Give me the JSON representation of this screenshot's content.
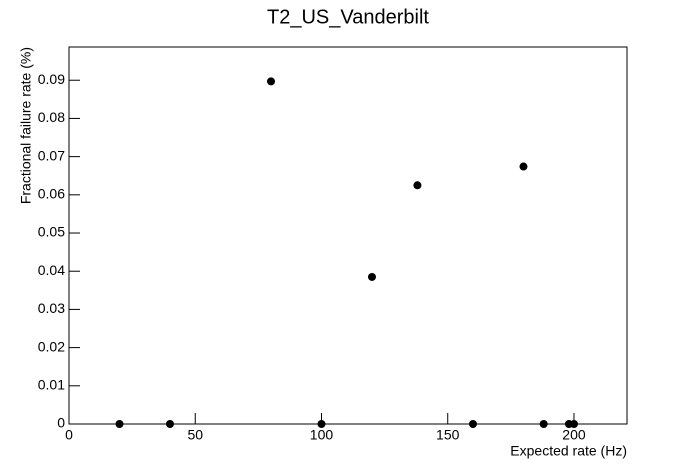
{
  "chart_data": {
    "type": "scatter",
    "title": "T2_US_Vanderbilt",
    "x_label": "Expected rate (Hz)",
    "y_label": "Fractional failure rate (%)",
    "x": [
      20,
      40,
      80,
      100,
      120,
      138,
      160,
      180,
      188,
      198,
      200
    ],
    "values": [
      0,
      0,
      0.0897,
      0,
      0.0385,
      0.0625,
      0,
      0.0674,
      0,
      0,
      0
    ],
    "color": "#000000",
    "xlim": [
      0,
      221
    ],
    "xticks": [
      0,
      50,
      100,
      150,
      200
    ],
    "ylim": [
      0,
      0.0987
    ],
    "yticks": [
      0,
      0.01,
      0.02,
      0.03,
      0.04,
      0.05,
      0.06,
      0.07,
      0.08,
      0.09
    ],
    "grid": false
  }
}
